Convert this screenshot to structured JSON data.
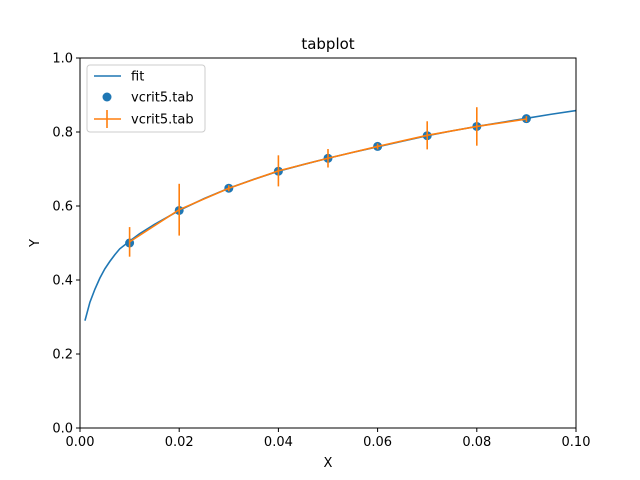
{
  "chart_data": {
    "type": "line",
    "title": "tabplot",
    "xlabel": "X",
    "ylabel": "Y",
    "xlim": [
      0.0,
      0.1
    ],
    "ylim": [
      0.0,
      1.0
    ],
    "xticks": [
      0.0,
      0.02,
      0.04,
      0.06,
      0.08,
      0.1
    ],
    "xtick_labels": [
      "0.00",
      "0.02",
      "0.04",
      "0.06",
      "0.08",
      "0.10"
    ],
    "yticks": [
      0.0,
      0.2,
      0.4,
      0.6,
      0.8,
      1.0
    ],
    "ytick_labels": [
      "0.0",
      "0.2",
      "0.4",
      "0.6",
      "0.8",
      "1.0"
    ],
    "grid": false,
    "legend_position": "upper-left",
    "series": [
      {
        "name": "fit",
        "kind": "line",
        "color": "#1f77b4",
        "x": [
          0.001,
          0.002,
          0.003,
          0.004,
          0.005,
          0.006,
          0.007,
          0.008,
          0.01,
          0.012,
          0.015,
          0.02,
          0.025,
          0.03,
          0.035,
          0.04,
          0.045,
          0.05,
          0.055,
          0.06,
          0.065,
          0.07,
          0.075,
          0.08,
          0.085,
          0.09,
          0.095,
          0.1
        ],
        "y": [
          0.29,
          0.34,
          0.375,
          0.405,
          0.43,
          0.45,
          0.468,
          0.484,
          0.505,
          0.525,
          0.55,
          0.588,
          0.62,
          0.648,
          0.672,
          0.694,
          0.712,
          0.729,
          0.745,
          0.76,
          0.775,
          0.79,
          0.803,
          0.815,
          0.826,
          0.837,
          0.848,
          0.858
        ]
      },
      {
        "name": "vcrit5.tab",
        "kind": "scatter",
        "color": "#1f77b4",
        "x": [
          0.01,
          0.02,
          0.03,
          0.04,
          0.05,
          0.06,
          0.07,
          0.08,
          0.09
        ],
        "y": [
          0.5,
          0.588,
          0.648,
          0.694,
          0.729,
          0.761,
          0.79,
          0.815,
          0.836
        ]
      },
      {
        "name": "vcrit5.tab",
        "kind": "errorbar",
        "color": "#ff7f0e",
        "x": [
          0.01,
          0.02,
          0.03,
          0.04,
          0.05,
          0.06,
          0.07,
          0.08,
          0.09
        ],
        "y": [
          0.503,
          0.59,
          0.648,
          0.695,
          0.729,
          0.761,
          0.791,
          0.815,
          0.835
        ],
        "yerr": [
          0.04,
          0.07,
          0.008,
          0.042,
          0.025,
          0.008,
          0.038,
          0.052,
          0.008
        ]
      }
    ]
  }
}
